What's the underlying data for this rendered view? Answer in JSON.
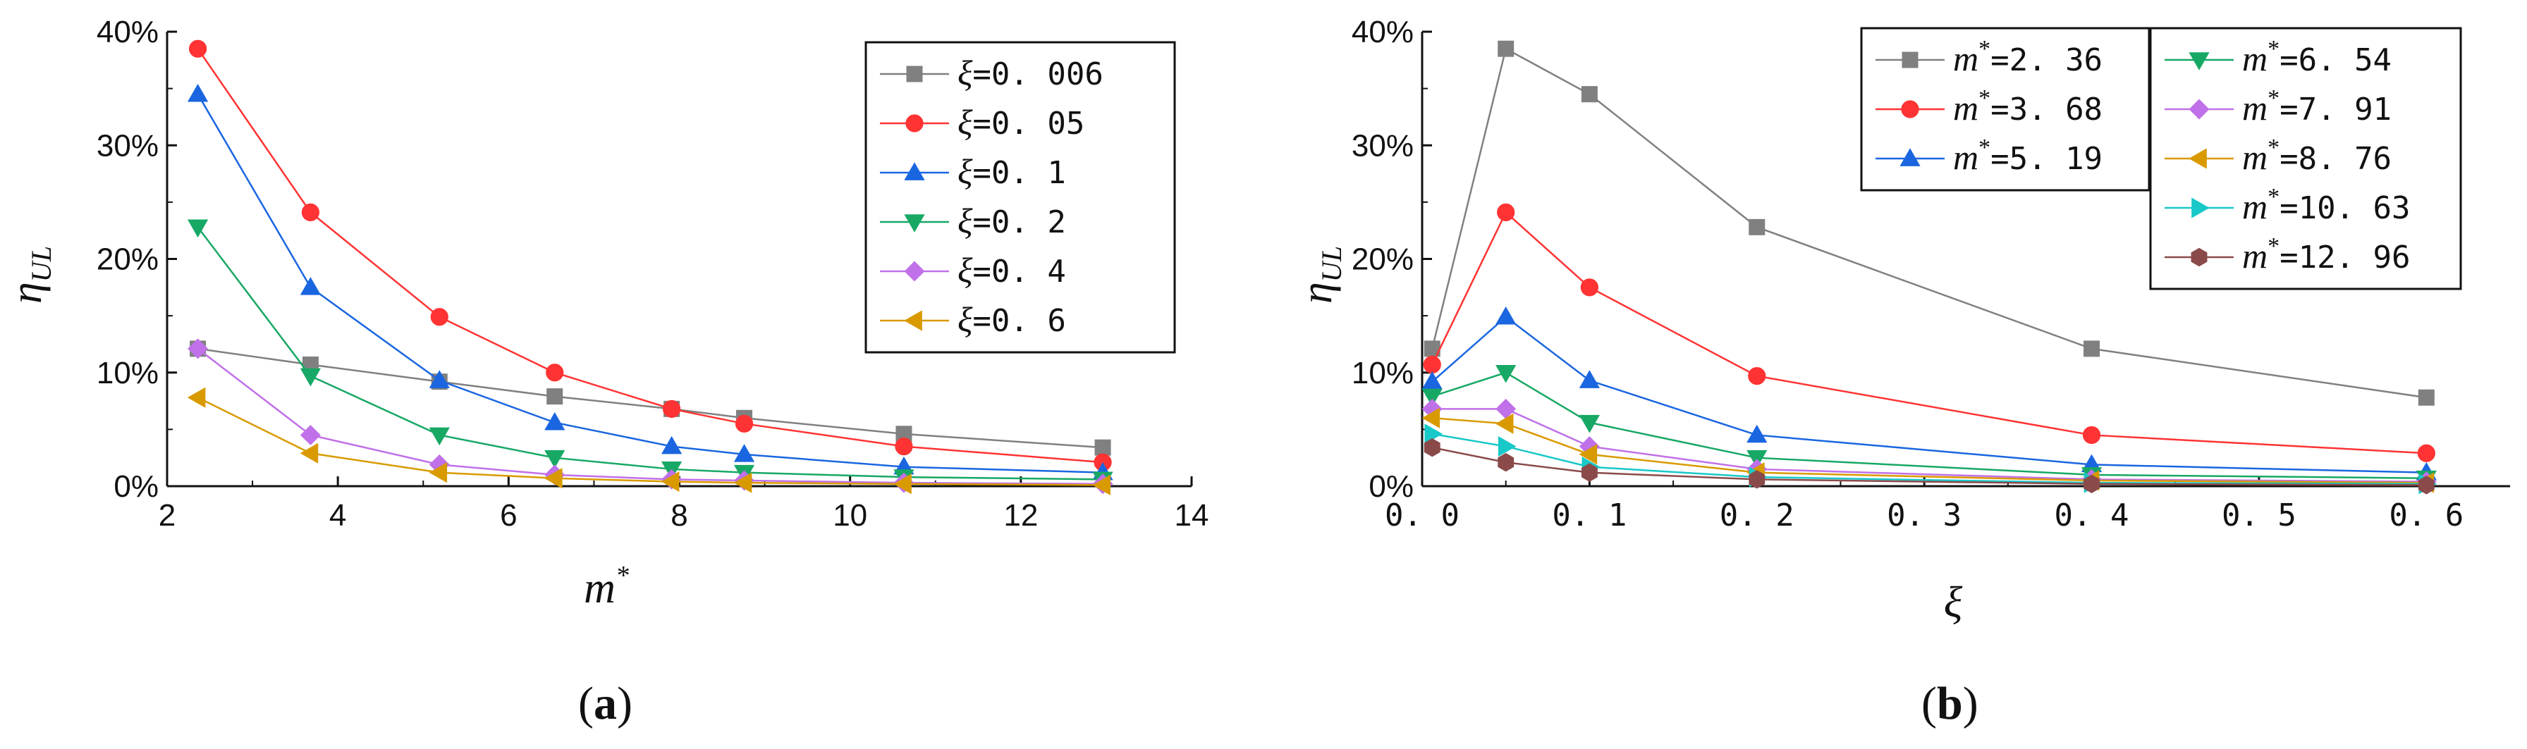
{
  "chart_data": [
    {
      "type": "line",
      "panel": "a",
      "caption_open": "(",
      "caption_letter": "a",
      "caption_close": ")",
      "xlabel": "m",
      "xlabel_sup": "*",
      "ylabel": "η",
      "ylabel_sub": "UL",
      "xlim": [
        2,
        14
      ],
      "ylim": [
        0,
        40
      ],
      "xticks": [
        2,
        4,
        6,
        8,
        10,
        12,
        14
      ],
      "xtick_labels": [
        "2",
        "4",
        "6",
        "8",
        "10",
        "12",
        "14"
      ],
      "yticks": [
        0,
        10,
        20,
        30,
        40
      ],
      "ytick_labels": [
        "0%",
        "10%",
        "20%",
        "30%",
        "40%"
      ],
      "legend_position": "top-right",
      "x": [
        2.36,
        3.68,
        5.19,
        6.54,
        7.91,
        8.76,
        10.63,
        12.96
      ],
      "series": [
        {
          "name": "ξ=0.006",
          "sym": "ξ",
          "val": "=0. 006",
          "color": "#808080",
          "marker": "square",
          "values": [
            12.1,
            10.7,
            9.2,
            7.9,
            6.8,
            6.0,
            4.6,
            3.4
          ]
        },
        {
          "name": "ξ=0.05",
          "sym": "ξ",
          "val": "=0. 05",
          "color": "#ff3333",
          "marker": "circle",
          "values": [
            38.5,
            24.1,
            14.9,
            10.0,
            6.8,
            5.5,
            3.5,
            2.1
          ]
        },
        {
          "name": "ξ=0.1",
          "sym": "ξ",
          "val": "=0. 1",
          "color": "#1a66e0",
          "marker": "triangle-up",
          "values": [
            34.5,
            17.5,
            9.3,
            5.6,
            3.5,
            2.8,
            1.7,
            1.2
          ]
        },
        {
          "name": "ξ=0.2",
          "sym": "ξ",
          "val": "=0. 2",
          "color": "#17a865",
          "marker": "triangle-down",
          "values": [
            22.8,
            9.7,
            4.5,
            2.5,
            1.5,
            1.2,
            0.8,
            0.6
          ]
        },
        {
          "name": "ξ=0.4",
          "sym": "ξ",
          "val": "=0. 4",
          "color": "#c070e8",
          "marker": "diamond",
          "values": [
            12.1,
            4.5,
            1.9,
            1.0,
            0.6,
            0.5,
            0.3,
            0.2
          ]
        },
        {
          "name": "ξ=0.6",
          "sym": "ξ",
          "val": "=0. 6",
          "color": "#d99a00",
          "marker": "triangle-left",
          "values": [
            7.8,
            2.9,
            1.2,
            0.7,
            0.4,
            0.3,
            0.2,
            0.1
          ]
        }
      ]
    },
    {
      "type": "line",
      "panel": "b",
      "caption_open": "(",
      "caption_letter": "b",
      "caption_close": ")",
      "xlabel": "ξ",
      "ylabel": "η",
      "ylabel_sub": "UL",
      "xlim": [
        0.0,
        0.65
      ],
      "ylim": [
        0,
        40
      ],
      "xticks": [
        0.0,
        0.1,
        0.2,
        0.3,
        0.4,
        0.5,
        0.6
      ],
      "xtick_labels": [
        "0. 0",
        "0. 1",
        "0. 2",
        "0. 3",
        "0. 4",
        "0. 5",
        "0. 6"
      ],
      "yticks": [
        0,
        10,
        20,
        30,
        40
      ],
      "ytick_labels": [
        "0%",
        "10%",
        "20%",
        "30%",
        "40%"
      ],
      "legend_position": "top-right",
      "x": [
        0.006,
        0.05,
        0.1,
        0.2,
        0.4,
        0.6
      ],
      "series": [
        {
          "name": "m*=2.36",
          "sym": "m",
          "val": "=2. 36",
          "color": "#808080",
          "marker": "square",
          "values": [
            12.1,
            38.5,
            34.5,
            22.8,
            12.1,
            7.8
          ]
        },
        {
          "name": "m*=3.68",
          "sym": "m",
          "val": "=3. 68",
          "color": "#ff3333",
          "marker": "circle",
          "values": [
            10.7,
            24.1,
            17.5,
            9.7,
            4.5,
            2.9
          ]
        },
        {
          "name": "m*=5.19",
          "sym": "m",
          "val": "=5. 19",
          "color": "#1a66e0",
          "marker": "triangle-up",
          "values": [
            9.2,
            14.9,
            9.3,
            4.5,
            1.9,
            1.2
          ]
        },
        {
          "name": "m*=6.54",
          "sym": "m",
          "val": "=6. 54",
          "color": "#17a865",
          "marker": "triangle-down",
          "values": [
            7.9,
            10.0,
            5.6,
            2.5,
            1.0,
            0.7
          ]
        },
        {
          "name": "m*=7.91",
          "sym": "m",
          "val": "=7. 91",
          "color": "#c070e8",
          "marker": "diamond",
          "values": [
            6.8,
            6.8,
            3.5,
            1.5,
            0.6,
            0.4
          ]
        },
        {
          "name": "m*=8.76",
          "sym": "m",
          "val": "=8. 76",
          "color": "#d99a00",
          "marker": "triangle-left",
          "values": [
            6.0,
            5.5,
            2.8,
            1.2,
            0.5,
            0.3
          ]
        },
        {
          "name": "m*=10.63",
          "sym": "m",
          "val": "=10. 63",
          "color": "#19c8c8",
          "marker": "triangle-right",
          "values": [
            4.6,
            3.5,
            1.7,
            0.8,
            0.3,
            0.2
          ]
        },
        {
          "name": "m*=12.96",
          "sym": "m",
          "val": "=12. 96",
          "color": "#8b4a4a",
          "marker": "hexagon",
          "values": [
            3.4,
            2.1,
            1.2,
            0.6,
            0.2,
            0.1
          ]
        }
      ]
    }
  ]
}
